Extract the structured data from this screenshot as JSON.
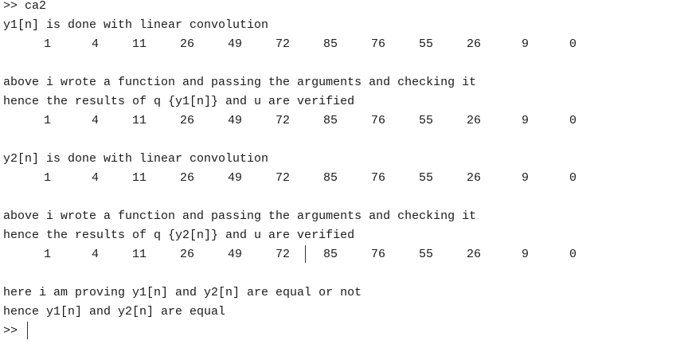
{
  "console": {
    "lines": [
      {
        "kind": "text",
        "text": ">> ca2"
      },
      {
        "kind": "text",
        "text": "y1[n] is done with linear convolution"
      },
      {
        "kind": "nums",
        "values": [
          1,
          4,
          11,
          26,
          49,
          72,
          85,
          76,
          55,
          26,
          9,
          0
        ]
      },
      {
        "kind": "blank"
      },
      {
        "kind": "text",
        "text": "above i wrote a function and passing the arguments and checking it"
      },
      {
        "kind": "text",
        "text": "hence the results of q {y1[n]} and u are verified"
      },
      {
        "kind": "nums",
        "values": [
          1,
          4,
          11,
          26,
          49,
          72,
          85,
          76,
          55,
          26,
          9,
          0
        ]
      },
      {
        "kind": "blank"
      },
      {
        "kind": "text",
        "text": "y2[n] is done with linear convolution"
      },
      {
        "kind": "nums",
        "values": [
          1,
          4,
          11,
          26,
          49,
          72,
          85,
          76,
          55,
          26,
          9,
          0
        ]
      },
      {
        "kind": "blank"
      },
      {
        "kind": "text",
        "text": "above i wrote a function and passing the arguments and checking it"
      },
      {
        "kind": "text",
        "text": "hence the results of q {y2[n]} and u are verified"
      },
      {
        "kind": "nums",
        "values": [
          1,
          4,
          11,
          26,
          49,
          72,
          85,
          76,
          55,
          26,
          9,
          0
        ]
      },
      {
        "kind": "blank"
      },
      {
        "kind": "text",
        "text": "here i am proving y1[n] and y2[n] are equal or not"
      },
      {
        "kind": "text",
        "text": "hence y1[n] and y2[n] are equal"
      }
    ],
    "prompt": ">>"
  }
}
